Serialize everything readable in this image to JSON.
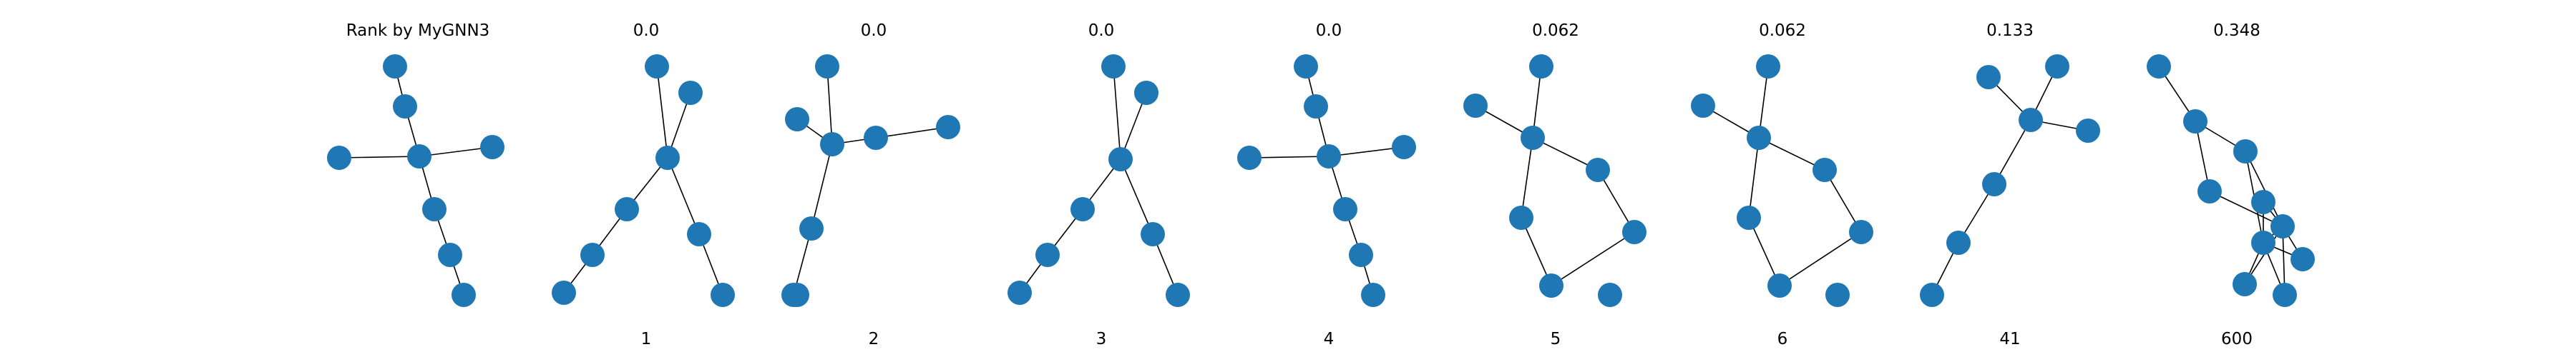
{
  "header_label": "Rank by MyGNN3",
  "node_color": "#1f77b4",
  "edge_color": "#000000",
  "panels": [
    {
      "score": "",
      "rank": "",
      "edges": [
        [
          0,
          1
        ],
        [
          1,
          2
        ],
        [
          3,
          2
        ],
        [
          2,
          4
        ],
        [
          2,
          5
        ],
        [
          5,
          6
        ],
        [
          6,
          7
        ]
      ]
    },
    {
      "score": "0.0",
      "rank": "1",
      "edges": [
        [
          0,
          1
        ],
        [
          2,
          1
        ],
        [
          1,
          3
        ],
        [
          3,
          4
        ],
        [
          4,
          5
        ],
        [
          1,
          6
        ],
        [
          6,
          7
        ]
      ]
    },
    {
      "score": "0.0",
      "rank": "2",
      "edges": [
        [
          0,
          1
        ],
        [
          2,
          1
        ],
        [
          1,
          3
        ],
        [
          3,
          4
        ],
        [
          4,
          5
        ],
        [
          1,
          6
        ],
        [
          6,
          7
        ]
      ]
    },
    {
      "score": "0.0",
      "rank": "3",
      "edges": [
        [
          0,
          1
        ],
        [
          2,
          1
        ],
        [
          1,
          3
        ],
        [
          3,
          4
        ],
        [
          4,
          5
        ],
        [
          1,
          6
        ],
        [
          6,
          7
        ]
      ]
    },
    {
      "score": "0.0",
      "rank": "4",
      "edges": [
        [
          0,
          1
        ],
        [
          1,
          2
        ],
        [
          3,
          2
        ],
        [
          2,
          4
        ],
        [
          2,
          5
        ],
        [
          5,
          6
        ],
        [
          6,
          7
        ]
      ]
    },
    {
      "score": "0.062",
      "rank": "5",
      "edges": [
        [
          0,
          2
        ],
        [
          1,
          2
        ],
        [
          2,
          3
        ],
        [
          2,
          4
        ],
        [
          4,
          6
        ],
        [
          6,
          5
        ],
        [
          5,
          3
        ]
      ]
    },
    {
      "score": "0.062",
      "rank": "6",
      "edges": [
        [
          0,
          2
        ],
        [
          1,
          2
        ],
        [
          2,
          3
        ],
        [
          2,
          4
        ],
        [
          4,
          6
        ],
        [
          6,
          5
        ],
        [
          5,
          3
        ]
      ]
    },
    {
      "score": "0.133",
      "rank": "41",
      "edges": [
        [
          0,
          2
        ],
        [
          1,
          2
        ],
        [
          2,
          3
        ],
        [
          2,
          4
        ],
        [
          4,
          5
        ],
        [
          5,
          6
        ]
      ]
    },
    {
      "score": "0.348",
      "rank": "600",
      "edges": [
        [
          0,
          1
        ],
        [
          1,
          2
        ],
        [
          1,
          3
        ],
        [
          2,
          5
        ],
        [
          3,
          5
        ],
        [
          2,
          6
        ],
        [
          4,
          5
        ],
        [
          4,
          6
        ],
        [
          5,
          6
        ],
        [
          5,
          7
        ],
        [
          6,
          7
        ],
        [
          5,
          8
        ],
        [
          6,
          8
        ],
        [
          5,
          9
        ],
        [
          6,
          9
        ]
      ]
    }
  ]
}
